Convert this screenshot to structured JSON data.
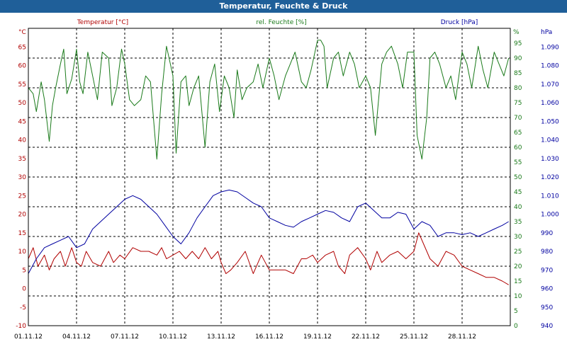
{
  "window": {
    "title": "Temperatur, Feuchte & Druck"
  },
  "chart_data": {
    "type": "line",
    "title": "Temperatur, Feuchte & Druck",
    "grid": true,
    "colors": {
      "temperature": "#b00000",
      "humidity": "#1a7a1a",
      "pressure": "#0000a0",
      "title_bar": "#1f5f99",
      "grid": "#000000"
    },
    "axes": {
      "temperature": {
        "label": "Temperatur [°C]",
        "unit": "°C",
        "min": -10,
        "max": 70,
        "step": 5,
        "ticks_to": 65
      },
      "humidity": {
        "label": "rel. Feuchte [%]",
        "unit": "%",
        "min": 0,
        "max": 100,
        "step": 5,
        "ticks_to": 95
      },
      "pressure": {
        "label": "Druck [hPa]",
        "unit": "hPa",
        "min": 940,
        "max": 1100,
        "step": 10,
        "ticks_to": 1090
      }
    },
    "x_range": [
      1,
      31
    ],
    "x_ticks": [
      {
        "day": 1,
        "label": "01.11.12"
      },
      {
        "day": 4,
        "label": "04.11.12"
      },
      {
        "day": 7,
        "label": "07.11.12"
      },
      {
        "day": 10,
        "label": "10.11.12"
      },
      {
        "day": 13,
        "label": "13.11.12"
      },
      {
        "day": 16,
        "label": "16.11.12"
      },
      {
        "day": 19,
        "label": "19.11.12"
      },
      {
        "day": 22,
        "label": "22.11.12"
      },
      {
        "day": 25,
        "label": "25.11.12"
      },
      {
        "day": 28,
        "label": "28.11.12"
      }
    ],
    "series": [
      {
        "name": "Temperatur [°C]",
        "axis": "temperature",
        "x": [
          1,
          1.3,
          1.6,
          2,
          2.3,
          2.6,
          3,
          3.3,
          3.7,
          4,
          4.3,
          4.6,
          5,
          5.5,
          6,
          6.3,
          6.7,
          7,
          7.5,
          8,
          8.5,
          9,
          9.3,
          9.6,
          10,
          10.4,
          10.8,
          11.2,
          11.6,
          12,
          12.4,
          12.8,
          13,
          13.3,
          13.6,
          14,
          14.5,
          15,
          15.5,
          16,
          16.5,
          17,
          17.5,
          18,
          18.3,
          18.7,
          19,
          19.5,
          20,
          20.3,
          20.7,
          21,
          21.5,
          22,
          22.3,
          22.7,
          23,
          23.5,
          24,
          24.5,
          25,
          25.3,
          25.6,
          26,
          26.5,
          27,
          27.5,
          28,
          28.5,
          29,
          29.5,
          30,
          30.5,
          30.9
        ],
        "values": [
          8,
          11,
          6,
          9,
          5,
          8,
          10,
          6,
          11,
          7,
          6,
          10,
          7,
          6,
          10,
          7,
          9,
          8,
          11,
          10,
          10,
          9,
          11,
          8,
          9,
          10,
          8,
          10,
          8,
          11,
          8,
          10,
          7,
          4,
          5,
          7,
          10,
          4,
          9,
          5,
          5,
          5,
          4,
          8,
          8,
          9,
          7,
          9,
          10,
          6,
          4,
          9,
          11,
          8,
          5,
          10,
          7,
          9,
          10,
          8,
          10,
          15,
          12,
          8,
          6,
          10,
          9,
          6,
          5,
          4,
          3,
          3,
          2,
          1
        ]
      },
      {
        "name": "rel. Feuchte [%]",
        "axis": "humidity",
        "x": [
          1,
          1.3,
          1.5,
          1.8,
          2,
          2.3,
          2.5,
          2.7,
          3,
          3.2,
          3.4,
          3.7,
          4,
          4.2,
          4.4,
          4.7,
          5,
          5.3,
          5.6,
          6,
          6.2,
          6.5,
          6.8,
          7,
          7.3,
          7.6,
          8,
          8.3,
          8.6,
          9,
          9.3,
          9.6,
          10,
          10.2,
          10.5,
          10.8,
          11,
          11.3,
          11.6,
          12,
          12.3,
          12.6,
          12.9,
          13.2,
          13.5,
          13.8,
          14,
          14.3,
          14.6,
          15,
          15.3,
          15.6,
          16,
          16.3,
          16.6,
          17,
          17.3,
          17.6,
          18,
          18.3,
          18.6,
          19,
          19.2,
          19.4,
          19.6,
          20,
          20.3,
          20.6,
          21,
          21.3,
          21.6,
          22,
          22.3,
          22.6,
          23,
          23.3,
          23.6,
          24,
          24.3,
          24.6,
          25,
          25.2,
          25.5,
          25.8,
          26,
          26.3,
          26.6,
          27,
          27.3,
          27.6,
          28,
          28.3,
          28.6,
          29,
          29.3,
          29.6,
          30,
          30.3,
          30.6,
          30.9
        ],
        "values": [
          80,
          78,
          72,
          82,
          76,
          62,
          74,
          80,
          88,
          93,
          78,
          83,
          93,
          82,
          78,
          92,
          84,
          76,
          92,
          90,
          74,
          80,
          93,
          88,
          76,
          74,
          76,
          84,
          82,
          56,
          78,
          94,
          84,
          58,
          82,
          84,
          74,
          80,
          84,
          60,
          82,
          88,
          72,
          84,
          80,
          70,
          86,
          76,
          80,
          82,
          88,
          80,
          90,
          84,
          76,
          84,
          88,
          92,
          82,
          80,
          86,
          96,
          96,
          94,
          80,
          90,
          92,
          84,
          92,
          88,
          80,
          84,
          80,
          64,
          88,
          92,
          94,
          88,
          80,
          92,
          92,
          64,
          56,
          70,
          90,
          92,
          88,
          80,
          84,
          76,
          92,
          88,
          80,
          94,
          86,
          80,
          92,
          88,
          84,
          90
        ]
      },
      {
        "name": "Druck [hPa]",
        "axis": "pressure",
        "x": [
          1,
          1.5,
          2,
          2.5,
          3,
          3.5,
          4,
          4.5,
          5,
          5.5,
          6,
          6.5,
          7,
          7.5,
          8,
          8.5,
          9,
          9.5,
          10,
          10.5,
          11,
          11.5,
          12,
          12.5,
          13,
          13.5,
          14,
          14.5,
          15,
          15.5,
          16,
          16.5,
          17,
          17.5,
          18,
          18.5,
          19,
          19.5,
          20,
          20.5,
          21,
          21.5,
          22,
          22.5,
          23,
          23.5,
          24,
          24.5,
          25,
          25.5,
          26,
          26.5,
          27,
          27.5,
          28,
          28.5,
          29,
          29.5,
          30,
          30.5,
          30.9
        ],
        "values": [
          968,
          976,
          982,
          984,
          986,
          988,
          982,
          984,
          992,
          996,
          1000,
          1004,
          1008,
          1010,
          1008,
          1004,
          1000,
          994,
          988,
          984,
          990,
          998,
          1004,
          1010,
          1012,
          1013,
          1012,
          1009,
          1006,
          1004,
          998,
          996,
          994,
          993,
          996,
          998,
          1000,
          1002,
          1001,
          998,
          996,
          1004,
          1006,
          1002,
          998,
          998,
          1001,
          1000,
          992,
          996,
          994,
          988,
          990,
          990,
          989,
          990,
          988,
          990,
          992,
          994,
          996
        ]
      }
    ]
  }
}
